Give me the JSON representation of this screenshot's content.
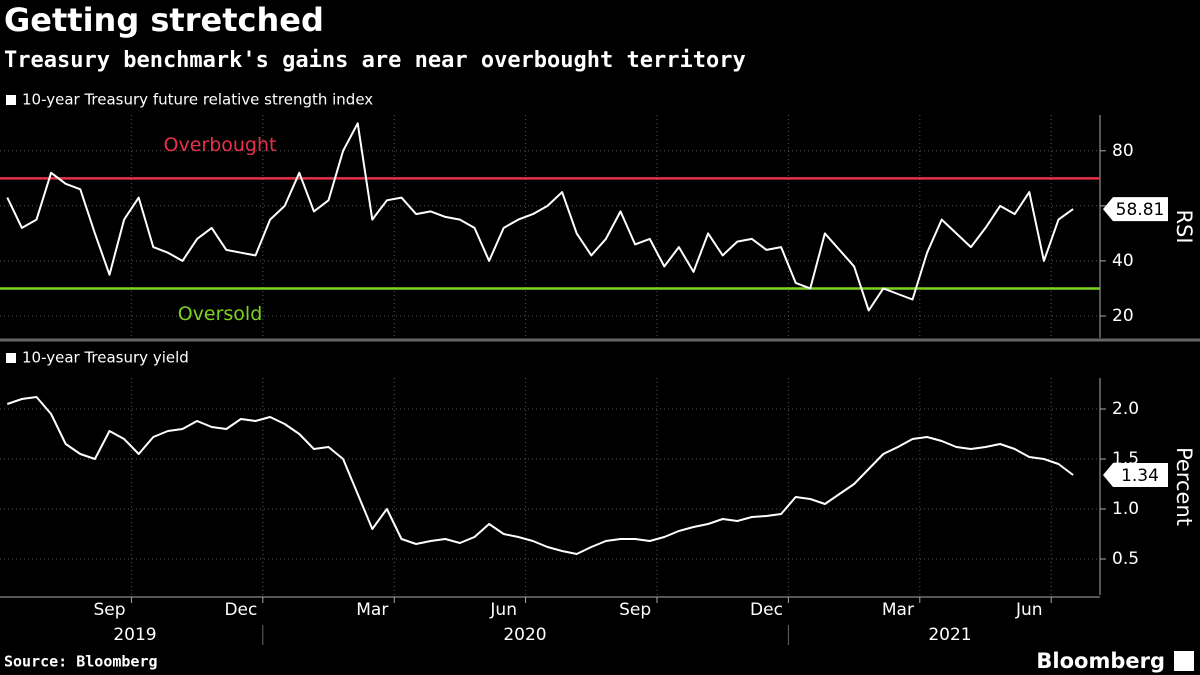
{
  "title": "Getting stretched",
  "subtitle": "Treasury benchmark's gains are near overbought territory",
  "source": "Source: Bloomberg",
  "brand": "Bloomberg",
  "chart_data": [
    {
      "type": "line",
      "series": [
        {
          "name": "10-year Treasury future relative strength index",
          "color": "#ffffff",
          "values": [
            63,
            52,
            55,
            72,
            68,
            66,
            50,
            35,
            55,
            63,
            45,
            43,
            40,
            48,
            52,
            44,
            43,
            42,
            55,
            60,
            72,
            58,
            62,
            80,
            90,
            55,
            62,
            63,
            57,
            58,
            56,
            55,
            52,
            40,
            52,
            55,
            57,
            60,
            65,
            50,
            42,
            48,
            58,
            46,
            48,
            38,
            45,
            36,
            50,
            42,
            47,
            48,
            44,
            45,
            32,
            30,
            50,
            44,
            38,
            22,
            30,
            28,
            26,
            43,
            55,
            50,
            45,
            52,
            60,
            57,
            65,
            40,
            55,
            58.81
          ]
        }
      ],
      "ylabel": "RSI",
      "ylim": [
        12,
        93
      ],
      "yticks": [
        20,
        40,
        60,
        80
      ],
      "grid": true,
      "reference_lines": [
        {
          "value": 70,
          "label": "Overbought",
          "color": "#e8304a"
        },
        {
          "value": 30,
          "label": "Oversold",
          "color": "#7ed321"
        }
      ]
    },
    {
      "type": "line",
      "series": [
        {
          "name": "10-year Treasury yield",
          "color": "#ffffff",
          "values": [
            2.05,
            2.1,
            2.12,
            1.95,
            1.65,
            1.55,
            1.5,
            1.78,
            1.7,
            1.55,
            1.72,
            1.78,
            1.8,
            1.88,
            1.82,
            1.8,
            1.9,
            1.88,
            1.92,
            1.85,
            1.75,
            1.6,
            1.62,
            1.5,
            1.15,
            0.8,
            1.0,
            0.7,
            0.65,
            0.68,
            0.7,
            0.66,
            0.72,
            0.85,
            0.75,
            0.72,
            0.68,
            0.62,
            0.58,
            0.55,
            0.62,
            0.68,
            0.7,
            0.7,
            0.68,
            0.72,
            0.78,
            0.82,
            0.85,
            0.9,
            0.88,
            0.92,
            0.93,
            0.95,
            1.12,
            1.1,
            1.05,
            1.15,
            1.25,
            1.4,
            1.55,
            1.62,
            1.7,
            1.72,
            1.68,
            1.62,
            1.6,
            1.62,
            1.65,
            1.6,
            1.52,
            1.5,
            1.45,
            1.34
          ]
        }
      ],
      "ylabel": "Percent",
      "ylim": [
        0.14,
        2.31
      ],
      "yticks": [
        {
          "value": 2,
          "label": "2.0"
        },
        1.5,
        {
          "value": 1,
          "label": "1.0"
        },
        0.5
      ],
      "grid": true,
      "categories": [
        null,
        null,
        null,
        null,
        null,
        null,
        null,
        "Sep",
        null,
        null,
        null,
        null,
        null,
        null,
        null,
        null,
        "Dec",
        null,
        null,
        null,
        null,
        null,
        null,
        null,
        null,
        "Mar",
        null,
        null,
        null,
        null,
        null,
        null,
        null,
        null,
        "Jun",
        null,
        null,
        null,
        null,
        null,
        null,
        null,
        null,
        "Sep",
        null,
        null,
        null,
        null,
        null,
        null,
        null,
        null,
        "Dec",
        null,
        null,
        null,
        null,
        null,
        null,
        null,
        null,
        "Mar",
        null,
        null,
        null,
        null,
        null,
        null,
        null,
        null,
        "Jun",
        null,
        null,
        null
      ],
      "year_labels": [
        "2019",
        "2020",
        "2021"
      ]
    }
  ]
}
